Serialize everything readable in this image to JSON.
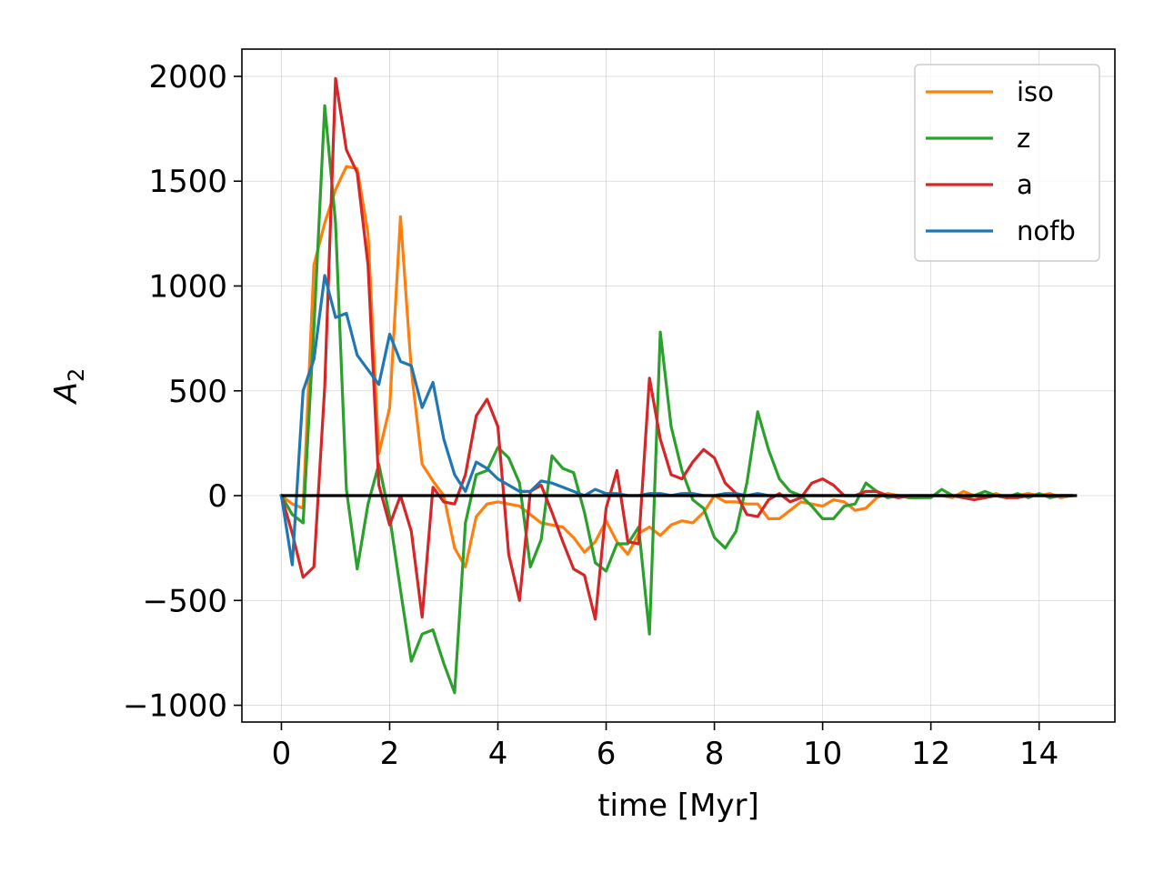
{
  "chart_data": {
    "type": "line",
    "title": "",
    "xlabel": "time   [Myr]",
    "ylabel": "A2",
    "xlim": [
      -0.73,
      15.4
    ],
    "ylim": [
      -1080,
      2130
    ],
    "xticks": [
      0,
      2,
      4,
      6,
      8,
      10,
      12,
      14
    ],
    "yticks": [
      -1000,
      -500,
      0,
      500,
      1000,
      1500,
      2000
    ],
    "xtick_labels": [
      "0",
      "2",
      "4",
      "6",
      "8",
      "10",
      "12",
      "14"
    ],
    "ytick_labels": [
      "−1000",
      "−500",
      "0",
      "500",
      "1000",
      "1500",
      "2000"
    ],
    "grid": true,
    "legend_position": "top-right",
    "x": [
      0,
      0.2,
      0.4,
      0.6,
      0.8,
      1.0,
      1.2,
      1.4,
      1.6,
      1.8,
      2.0,
      2.2,
      2.4,
      2.6,
      2.8,
      3.0,
      3.2,
      3.4,
      3.6,
      3.8,
      4.0,
      4.2,
      4.4,
      4.6,
      4.8,
      5.0,
      5.2,
      5.4,
      5.6,
      5.8,
      6.0,
      6.2,
      6.4,
      6.6,
      6.8,
      7.0,
      7.2,
      7.4,
      7.6,
      7.8,
      8.0,
      8.2,
      8.4,
      8.6,
      8.8,
      9.0,
      9.2,
      9.4,
      9.6,
      9.8,
      10.0,
      10.2,
      10.4,
      10.6,
      10.8,
      11.0,
      11.2,
      11.4,
      11.6,
      11.8,
      12.0,
      12.2,
      12.4,
      12.6,
      12.8,
      13.0,
      13.2,
      13.4,
      13.6,
      13.8,
      14.0,
      14.2,
      14.4,
      14.6
    ],
    "series": [
      {
        "name": "iso",
        "color": "#ff7f0e",
        "values": [
          0,
          -40,
          -60,
          1100,
          1300,
          1460,
          1570,
          1560,
          1250,
          200,
          420,
          1330,
          600,
          150,
          70,
          0,
          -250,
          -340,
          -100,
          -40,
          -30,
          -40,
          -50,
          -90,
          -130,
          -140,
          -150,
          -200,
          -270,
          -220,
          -120,
          -220,
          -280,
          -180,
          -150,
          -190,
          -140,
          -120,
          -130,
          -80,
          0,
          -30,
          -30,
          -40,
          -40,
          -110,
          -110,
          -70,
          -30,
          -40,
          -50,
          -20,
          -30,
          -70,
          -60,
          -10,
          10,
          0,
          -10,
          -10,
          0,
          0,
          -10,
          20,
          0,
          -10,
          10,
          -10,
          0,
          10,
          0,
          10,
          -10,
          0
        ]
      },
      {
        "name": "z",
        "color": "#2ca02c",
        "values": [
          0,
          -90,
          -130,
          800,
          1860,
          1300,
          30,
          -350,
          -40,
          150,
          -100,
          -450,
          -790,
          -660,
          -640,
          -800,
          -940,
          -130,
          100,
          120,
          230,
          180,
          60,
          -340,
          -210,
          190,
          130,
          110,
          -80,
          -320,
          -360,
          -230,
          -230,
          -150,
          -660,
          780,
          330,
          120,
          -20,
          -60,
          -200,
          -250,
          -170,
          60,
          400,
          220,
          80,
          20,
          0,
          -50,
          -110,
          -110,
          -50,
          -40,
          60,
          20,
          -10,
          0,
          -10,
          -10,
          -10,
          30,
          0,
          -10,
          0,
          20,
          0,
          -10,
          10,
          -10,
          10,
          -10,
          0,
          0
        ]
      },
      {
        "name": "a",
        "color": "#d62728",
        "values": [
          0,
          -180,
          -390,
          -340,
          520,
          1990,
          1650,
          1540,
          1100,
          50,
          -140,
          0,
          -170,
          -580,
          40,
          -30,
          -40,
          100,
          380,
          460,
          330,
          -280,
          -500,
          20,
          50,
          -80,
          -220,
          -350,
          -380,
          -590,
          -60,
          120,
          -220,
          -230,
          560,
          270,
          100,
          80,
          160,
          220,
          180,
          60,
          10,
          -90,
          -100,
          -20,
          10,
          -30,
          -10,
          60,
          80,
          50,
          0,
          0,
          20,
          20,
          0,
          -10,
          0,
          0,
          0,
          0,
          0,
          -10,
          -20,
          -10,
          0,
          -10,
          -10,
          0,
          0,
          0,
          0,
          0
        ]
      },
      {
        "name": "nofb",
        "color": "#1f77b4",
        "values": [
          0,
          -330,
          500,
          650,
          1050,
          850,
          870,
          670,
          600,
          530,
          770,
          640,
          620,
          420,
          540,
          270,
          100,
          20,
          160,
          130,
          80,
          50,
          20,
          20,
          70,
          60,
          40,
          20,
          0,
          30,
          10,
          10,
          0,
          0,
          10,
          10,
          0,
          10,
          10,
          0,
          0,
          10,
          10,
          0,
          10,
          0,
          0,
          0,
          0,
          0,
          0,
          0,
          0,
          0,
          0,
          0,
          0,
          0,
          0,
          0,
          0,
          0,
          0,
          0,
          0,
          0,
          0,
          0,
          0,
          0,
          0,
          0,
          0,
          0
        ]
      }
    ],
    "reference_line": {
      "color": "#000000",
      "x": [
        0,
        14.7
      ],
      "y": [
        0,
        0
      ]
    }
  }
}
